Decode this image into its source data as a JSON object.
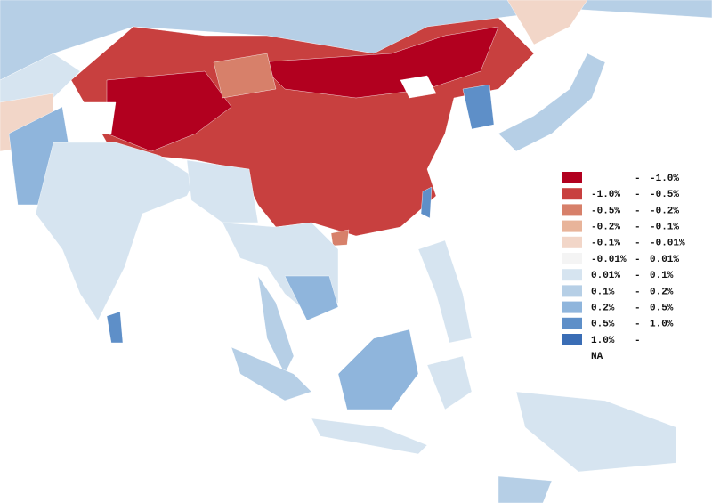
{
  "legend": {
    "separator": "-",
    "items": [
      {
        "color": "#b2001f",
        "to": "-1.0%"
      },
      {
        "color": "#c8403f",
        "from": "-1.0%",
        "to": "-0.5%"
      },
      {
        "color": "#d7806a",
        "from": "-0.5%",
        "to": "-0.2%"
      },
      {
        "color": "#e8b49a",
        "from": "-0.2%",
        "to": "-0.1%"
      },
      {
        "color": "#f2d6c8",
        "from": "-0.1%",
        "to": "-0.01%"
      },
      {
        "color": "#f4f4f4",
        "from": "-0.01%",
        "to": "0.01%"
      },
      {
        "color": "#d6e4f0",
        "from": "0.01%",
        "to": "0.1%"
      },
      {
        "color": "#b6cfe6",
        "from": "0.1%",
        "to": "0.2%"
      },
      {
        "color": "#8fb5dc",
        "from": "0.2%",
        "to": "0.5%"
      },
      {
        "color": "#5e8fc8",
        "from": "0.5%",
        "to": "1.0%"
      },
      {
        "color": "#3a6db5",
        "from": "1.0%"
      },
      {
        "color": "#ffffff",
        "label": "NA"
      }
    ]
  }
}
